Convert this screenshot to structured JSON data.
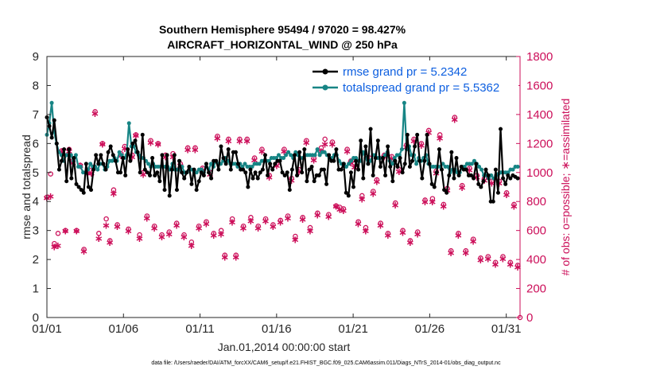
{
  "chart_data": {
    "type": "line",
    "title": "Southern Hemisphere 95494 / 97020 = 98.427%",
    "subtitle": "AIRCRAFT_HORIZONTAL_WIND @ 250 hPa",
    "xlabel": "Jan.01,2014 00:00:00 start",
    "ylabel": "rmse and totalspread",
    "y2label": "# of obs: o=possible; ∗=assimilated",
    "xlim": [
      0,
      30.9
    ],
    "ylim": [
      0,
      9
    ],
    "y2lim": [
      0,
      1800
    ],
    "xticks": [
      0,
      5,
      10,
      15,
      20,
      25,
      30
    ],
    "xticklabels": [
      "01/01",
      "01/06",
      "01/11",
      "01/16",
      "01/21",
      "01/26",
      "01/31"
    ],
    "yticks": [
      "0",
      "1",
      "2",
      "3",
      "4",
      "5",
      "6",
      "7",
      "8",
      "9"
    ],
    "y2ticks": [
      "0",
      "200",
      "400",
      "600",
      "800",
      "1000",
      "1200",
      "1400",
      "1600",
      "1800"
    ],
    "grid": false,
    "legend_position": "top-right",
    "colors": {
      "rmse": "#000000",
      "spread": "#178585",
      "obs": "#cc0f5a"
    },
    "series": [
      {
        "name": "rmse grand pr = 5.2342",
        "values": [
          6.9,
          6.6,
          6.2,
          6.8,
          6.0,
          5.1,
          5.4,
          5.8,
          4.7,
          5.8,
          4.8,
          5.5,
          4.6,
          4.5,
          4.4,
          4.3,
          5.3,
          4.5,
          4.4,
          5.1,
          5.6,
          5.3,
          5.6,
          5.3,
          5.1,
          5.7,
          5.9,
          5.6,
          5.4,
          5.0,
          5.0,
          5.5,
          4.9,
          5.8,
          5.4,
          6.0,
          6.1,
          5.7,
          5.0,
          6.3,
          5.1,
          5.0,
          4.9,
          5.5,
          4.9,
          5.0,
          4.7,
          5.6,
          4.4,
          5.6,
          4.2,
          5.1,
          5.6,
          4.4,
          5.4,
          5.0,
          4.8,
          5.0,
          5.2,
          4.6,
          5.1,
          4.4,
          4.7,
          5.0,
          4.9,
          5.3,
          5.0,
          4.8,
          5.4,
          5.4,
          5.1,
          5.9,
          5.5,
          5.3,
          5.8,
          5.1,
          5.7,
          5.7,
          5.3,
          5.1,
          5.1,
          5.0,
          4.5,
          5.1,
          4.8,
          5.0,
          4.8,
          5.0,
          5.1,
          5.6,
          4.9,
          5.3,
          5.1,
          5.3,
          5.4,
          5.4,
          5.0,
          4.9,
          5.0,
          4.4,
          5.1,
          5.6,
          4.9,
          5.7,
          5.0,
          5.8,
          4.7,
          5.1,
          5.2,
          4.7,
          4.9,
          4.9,
          5.1,
          5.1,
          4.6,
          5.6,
          5.4,
          5.4,
          5.8,
          5.1,
          5.1,
          5.3,
          4.3,
          4.2,
          5.0,
          4.5,
          5.4,
          5.1,
          6.1,
          4.8,
          5.9,
          5.3,
          6.5,
          4.9,
          5.5,
          6.1,
          5.2,
          5.5,
          4.9,
          5.9,
          5.2,
          4.7,
          5.4,
          5.2,
          5.5,
          5.0,
          5.3,
          6.3,
          5.2,
          5.4,
          5.9,
          6.3,
          5.4,
          4.8,
          5.4,
          6.3,
          5.3,
          4.6,
          4.5,
          5.0,
          5.8,
          5.1,
          4.4,
          4.3,
          4.9,
          5.7,
          4.8,
          5.5,
          4.9,
          5.2,
          5.1,
          5.1,
          4.9,
          4.9,
          4.8,
          5.3,
          4.6,
          4.5,
          4.7,
          5.1,
          4.9,
          4.0,
          4.0,
          5.1,
          4.3,
          6.5,
          4.8,
          4.6,
          4.9,
          4.8,
          4.9,
          4.85,
          4.8
        ]
      },
      {
        "name": "totalspread grand pr = 5.5362",
        "values": [
          6.3,
          6.7,
          7.4,
          6.4,
          6.0,
          5.7,
          5.6,
          5.4,
          5.6,
          5.6,
          5.6,
          5.4,
          5.6,
          5.2,
          5.2,
          5.0,
          5.0,
          5.1,
          5.3,
          5.2,
          5.2,
          5.1,
          5.3,
          5.3,
          5.1,
          5.2,
          5.4,
          5.4,
          5.5,
          5.4,
          5.7,
          5.6,
          5.5,
          5.6,
          6.7,
          5.9,
          5.9,
          5.7,
          5.6,
          5.5,
          5.5,
          5.4,
          5.3,
          5.2,
          5.3,
          5.2,
          5.2,
          5.2,
          5.2,
          5.2,
          5.2,
          5.1,
          5.3,
          5.1,
          5.1,
          5.1,
          5.2,
          5.0,
          5.0,
          5.1,
          5.1,
          5.0,
          5.0,
          5.1,
          5.1,
          5.0,
          5.2,
          5.1,
          5.3,
          5.2,
          5.4,
          5.3,
          5.3,
          5.4,
          5.5,
          5.4,
          5.3,
          5.3,
          5.3,
          5.2,
          5.3,
          5.2,
          5.3,
          5.2,
          5.2,
          5.2,
          5.3,
          5.3,
          5.3,
          5.4,
          5.4,
          5.4,
          5.4,
          5.5,
          5.5,
          5.5,
          5.6,
          5.5,
          5.5,
          5.6,
          5.7,
          5.6,
          5.5,
          5.7,
          5.6,
          5.5,
          5.5,
          5.6,
          5.6,
          5.6,
          5.6,
          5.6,
          5.8,
          5.6,
          5.7,
          5.7,
          5.6,
          5.5,
          5.5,
          5.6,
          5.6,
          5.4,
          5.3,
          5.3,
          5.2,
          5.3,
          5.4,
          5.5,
          5.5,
          5.4,
          5.4,
          5.7,
          5.5,
          5.3,
          5.4,
          5.6,
          5.6,
          5.5,
          5.5,
          5.5,
          5.6,
          5.7,
          5.4,
          5.3,
          5.5,
          5.6,
          5.6,
          5.8,
          7.4,
          5.8,
          5.9,
          5.6,
          5.6,
          5.3,
          5.5,
          5.4,
          5.5,
          5.6,
          5.3,
          5.2,
          5.2,
          5.2,
          5.2,
          5.2,
          5.3,
          5.2,
          5.2,
          5.0,
          5.1,
          5.1,
          5.0,
          5.0,
          5.2,
          5.2,
          5.3,
          5.3,
          5.3,
          5.4,
          5.3,
          5.2,
          5.1,
          4.9,
          4.9,
          4.8,
          4.9,
          4.8,
          4.9,
          4.95,
          5.0,
          5.0,
          5.0,
          5.0,
          5.1,
          5.1,
          5.2,
          5.2
        ]
      }
    ],
    "obs_possible": [
      830,
      990,
      510,
      580,
      1150,
      600,
      1160,
      1080,
      600,
      1050,
      470,
      1000,
      1040,
      1420,
      580,
      1200,
      680,
      530,
      880,
      640,
      1130,
      1180,
      610,
      1120,
      1260,
      570,
      1000,
      700,
      1220,
      630,
      1200,
      570,
      1120,
      590,
      1130,
      650,
      1060,
      570,
      1170,
      520,
      1170,
      630,
      1030,
      660,
      1000,
      580,
      1250,
      600,
      430,
      1230,
      680,
      430,
      1230,
      630,
      1230,
      690,
      1100,
      630,
      1160,
      680,
      980,
      640,
      1060,
      670,
      1160,
      700,
      960,
      560,
      1020,
      690,
      1220,
      620,
      1100,
      720,
      1170,
      1230,
      710,
      1210,
      770,
      760,
      750,
      1160,
      1080,
      1060,
      660,
      840,
      620,
      1100,
      870,
      950,
      650,
      1120,
      580,
      1110,
      790,
      1020,
      600,
      1190,
      530,
      1230,
      590,
      1200,
      810,
      1290,
      820,
      1010,
      1260,
      780,
      890,
      460,
      1380,
      580,
      910,
      460,
      1030,
      540,
      980,
      410,
      960,
      420,
      940,
      380,
      940,
      420,
      860,
      380,
      780,
      360
    ],
    "obs_assimilated": [
      830,
      840,
      490,
      500,
      1150,
      600,
      1150,
      1070,
      600,
      1050,
      460,
      1000,
      1000,
      1410,
      550,
      1200,
      640,
      520,
      860,
      630,
      1120,
      1170,
      600,
      1110,
      1260,
      550,
      990,
      690,
      1210,
      620,
      1200,
      560,
      1110,
      580,
      1110,
      640,
      1050,
      560,
      1160,
      500,
      1160,
      620,
      1020,
      650,
      990,
      570,
      1240,
      580,
      420,
      1220,
      660,
      420,
      1220,
      620,
      1220,
      670,
      1090,
      620,
      1150,
      670,
      970,
      630,
      1050,
      660,
      1150,
      690,
      950,
      540,
      1010,
      680,
      1210,
      600,
      1090,
      710,
      1150,
      1200,
      700,
      1200,
      770,
      750,
      740,
      1150,
      1070,
      1040,
      650,
      820,
      600,
      1090,
      860,
      940,
      640,
      1110,
      570,
      1100,
      780,
      1010,
      590,
      1180,
      520,
      1220,
      580,
      1190,
      800,
      1280,
      800,
      1000,
      1240,
      770,
      880,
      450,
      1370,
      570,
      900,
      450,
      1020,
      530,
      970,
      400,
      950,
      410,
      930,
      370,
      930,
      410,
      850,
      370,
      770,
      350
    ]
  },
  "footer": "data file: /Users/raeder/DAI/ATM_forcXX/CAM6_setup/f.e21.FHIST_BGC.f09_025.CAM6assim.011/Diags_NTrS_2014-01/obs_diag_output.nc"
}
